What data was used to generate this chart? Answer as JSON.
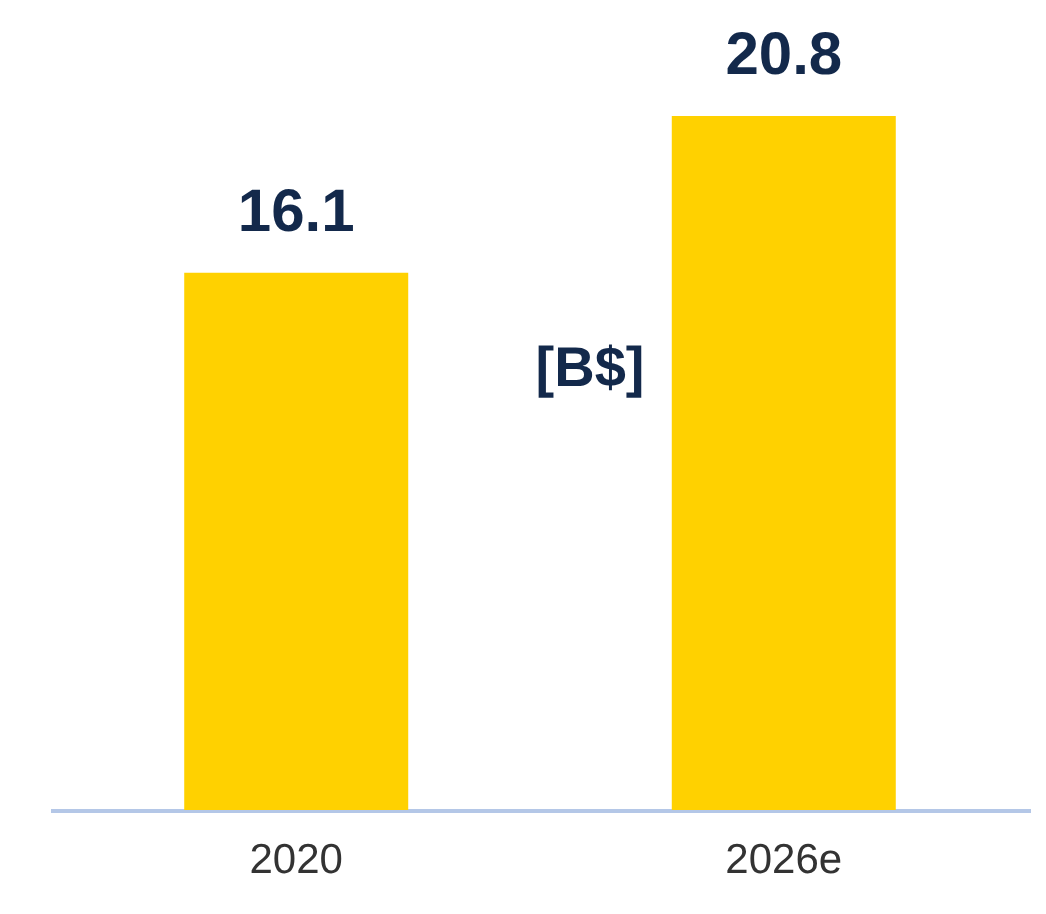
{
  "chart_data": {
    "type": "bar",
    "categories": [
      "2020",
      "2026e"
    ],
    "values": [
      16.1,
      20.8
    ],
    "color": "#ffd100",
    "data_labels": true,
    "annotations": [
      "[B$]"
    ]
  }
}
